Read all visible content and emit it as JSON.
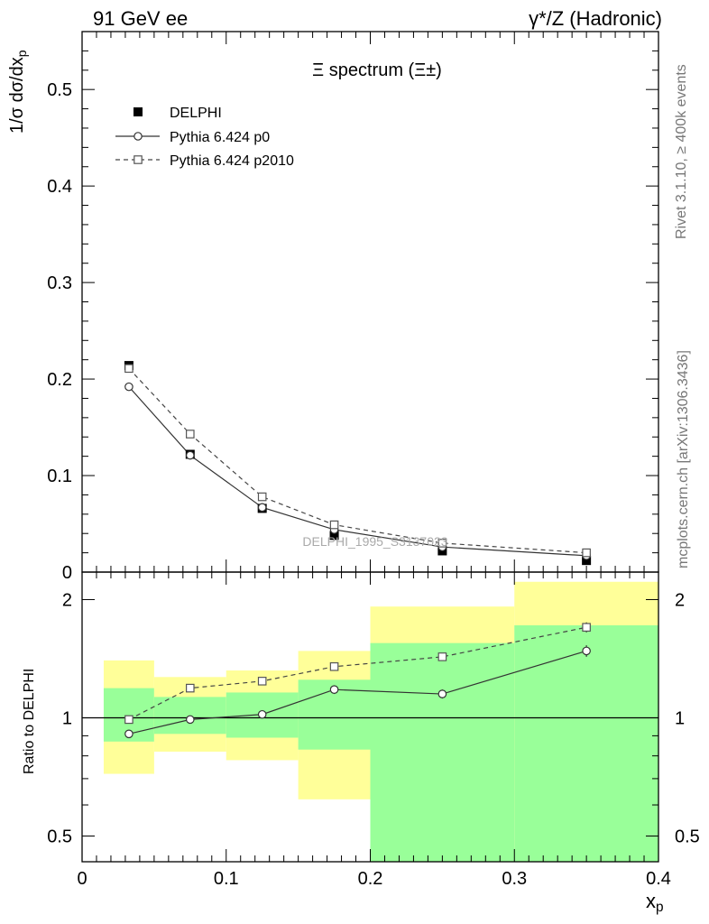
{
  "header": {
    "left": "91 GeV ee",
    "right": "γ*/Z (Hadronic)"
  },
  "side": {
    "rivet": "Rivet 3.1.10, ≥ 400k events",
    "mcplots": "mcplots.cern.ch [arXiv:1306.3436]"
  },
  "watermark": "DELPHI_1995_S3137023",
  "colors": {
    "band_inner": "#99ff99",
    "band_outer": "#ffff99"
  },
  "chart_data": [
    {
      "type": "scatter",
      "title": "Ξ spectrum (Ξ±)",
      "ylabel": "1/σ dσ/dxp",
      "xlim": [
        0,
        0.4
      ],
      "ylim": [
        0,
        0.56
      ],
      "yticks": [
        "0",
        "0.1",
        "0.2",
        "0.3",
        "0.4",
        "0.5"
      ],
      "legend_position": "top-left",
      "series": [
        {
          "name": "DELPHI",
          "style": "filled-square",
          "x": [
            0.0325,
            0.075,
            0.125,
            0.175,
            0.25,
            0.35
          ],
          "y": [
            0.214,
            0.122,
            0.066,
            0.038,
            0.022,
            0.012
          ]
        },
        {
          "name": "Pythia 6.424 p0",
          "style": "solid-circle",
          "x": [
            0.0325,
            0.075,
            0.125,
            0.175,
            0.25,
            0.35
          ],
          "y": [
            0.192,
            0.121,
            0.067,
            0.044,
            0.026,
            0.017
          ]
        },
        {
          "name": "Pythia 6.424 p2010",
          "style": "dashed-square",
          "x": [
            0.0325,
            0.075,
            0.125,
            0.175,
            0.25,
            0.35
          ],
          "y": [
            0.211,
            0.143,
            0.078,
            0.049,
            0.03,
            0.02
          ]
        }
      ]
    },
    {
      "type": "line",
      "ylabel": "Ratio to DELPHI",
      "xlabel": "xp",
      "xlim": [
        0,
        0.4
      ],
      "ylim": [
        0.43,
        2.35
      ],
      "log_y": true,
      "yticks": [
        "0.5",
        "1",
        "2"
      ],
      "xticks": [
        "0",
        "0.1",
        "0.2",
        "0.3",
        "0.4"
      ],
      "bins": [
        {
          "lo": 0.015,
          "hi": 0.05,
          "inner": [
            0.87,
            1.19
          ],
          "outer": [
            0.72,
            1.4
          ]
        },
        {
          "lo": 0.05,
          "hi": 0.1,
          "inner": [
            0.91,
            1.13
          ],
          "outer": [
            0.82,
            1.27
          ]
        },
        {
          "lo": 0.1,
          "hi": 0.15,
          "inner": [
            0.89,
            1.16
          ],
          "outer": [
            0.78,
            1.32
          ]
        },
        {
          "lo": 0.15,
          "hi": 0.2,
          "inner": [
            0.83,
            1.25
          ],
          "outer": [
            0.62,
            1.48
          ]
        },
        {
          "lo": 0.2,
          "hi": 0.3,
          "inner": [
            0.35,
            1.55
          ],
          "outer": [
            0.55,
            1.92
          ]
        },
        {
          "lo": 0.3,
          "hi": 0.4,
          "inner": [
            0.35,
            1.72
          ],
          "outer": [
            0.35,
            2.22
          ]
        }
      ],
      "series": [
        {
          "name": "Pythia 6.424 p0",
          "style": "solid-circle",
          "x": [
            0.0325,
            0.075,
            0.125,
            0.175,
            0.25,
            0.35
          ],
          "y": [
            0.91,
            0.99,
            1.02,
            1.18,
            1.15,
            1.48
          ],
          "err": [
            0.0,
            0.0,
            0.0,
            0.03,
            0.03,
            0.05
          ]
        },
        {
          "name": "Pythia 6.424 p2010",
          "style": "dashed-square",
          "x": [
            0.0325,
            0.075,
            0.125,
            0.175,
            0.25,
            0.35
          ],
          "y": [
            0.99,
            1.19,
            1.24,
            1.35,
            1.43,
            1.7
          ],
          "err": [
            0.0,
            0.0,
            0.0,
            0.03,
            0.03,
            0.05
          ]
        }
      ]
    }
  ]
}
